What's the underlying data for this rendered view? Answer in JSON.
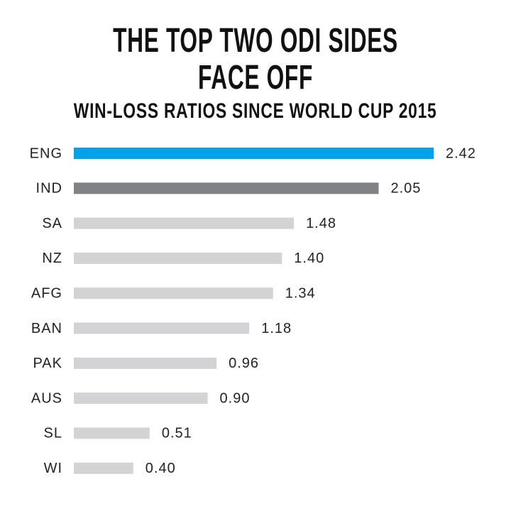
{
  "chart_data": {
    "type": "bar",
    "orientation": "horizontal",
    "title": "THE TOP TWO ODI SIDES FACE OFF",
    "subtitle": "WIN-LOSS RATIOS SINCE WORLD CUP 2015",
    "categories": [
      "ENG",
      "IND",
      "SA",
      "NZ",
      "AFG",
      "BAN",
      "PAK",
      "AUS",
      "SL",
      "WI"
    ],
    "values": [
      2.42,
      2.05,
      1.48,
      1.4,
      1.34,
      1.18,
      0.96,
      0.9,
      0.51,
      0.4
    ],
    "value_labels": [
      "2.42",
      "2.05",
      "1.48",
      "1.40",
      "1.34",
      "1.18",
      "0.96",
      "0.90",
      "0.51",
      "0.40"
    ],
    "colors": [
      "#00a3e8",
      "#818285",
      "#d3d3d5",
      "#d3d3d5",
      "#d3d3d5",
      "#d3d3d5",
      "#d3d3d5",
      "#d3d3d5",
      "#d3d3d5",
      "#d3d3d5"
    ]
  }
}
